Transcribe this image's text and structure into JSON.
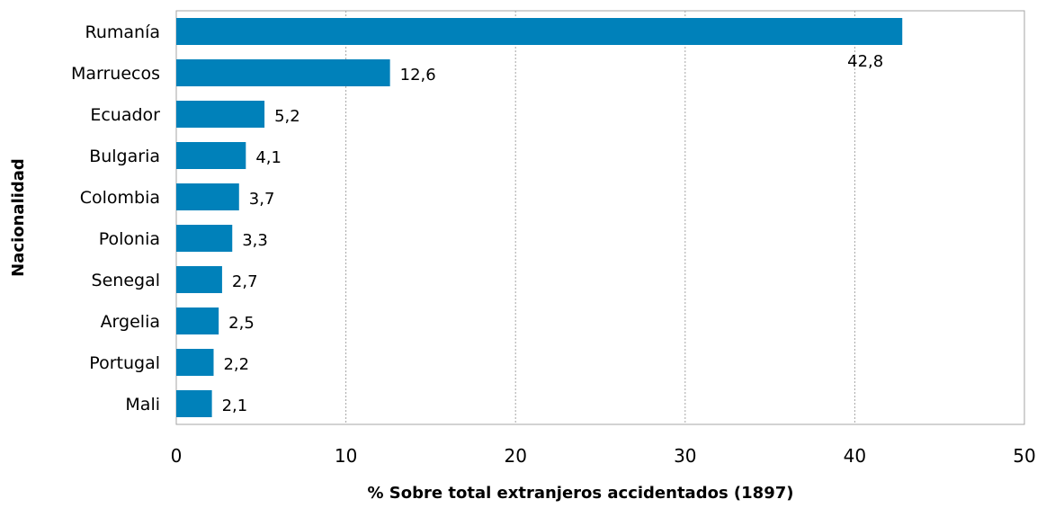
{
  "chart_data": {
    "type": "bar",
    "orientation": "horizontal",
    "categories": [
      "Rumanía",
      "Marruecos",
      "Ecuador",
      "Bulgaria",
      "Colombia",
      "Polonia",
      "Senegal",
      "Argelia",
      "Portugal",
      "Mali"
    ],
    "values": [
      42.8,
      12.6,
      5.2,
      4.1,
      3.7,
      3.3,
      2.7,
      2.5,
      2.2,
      2.1
    ],
    "value_labels": [
      "42,8",
      "12,6",
      "5,2",
      "4,1",
      "3,7",
      "3,3",
      "2,7",
      "2,5",
      "2,2",
      "2,1"
    ],
    "xlabel": "% Sobre total extranjeros accidentados (1897)",
    "ylabel": "Nacionalidad",
    "xlim": [
      0,
      50
    ],
    "xticks": [
      0,
      10,
      20,
      30,
      40,
      50
    ],
    "grid": "vertical",
    "bar_color": "#0081BA",
    "grid_color": "#A6A6A6",
    "legend": "none"
  }
}
